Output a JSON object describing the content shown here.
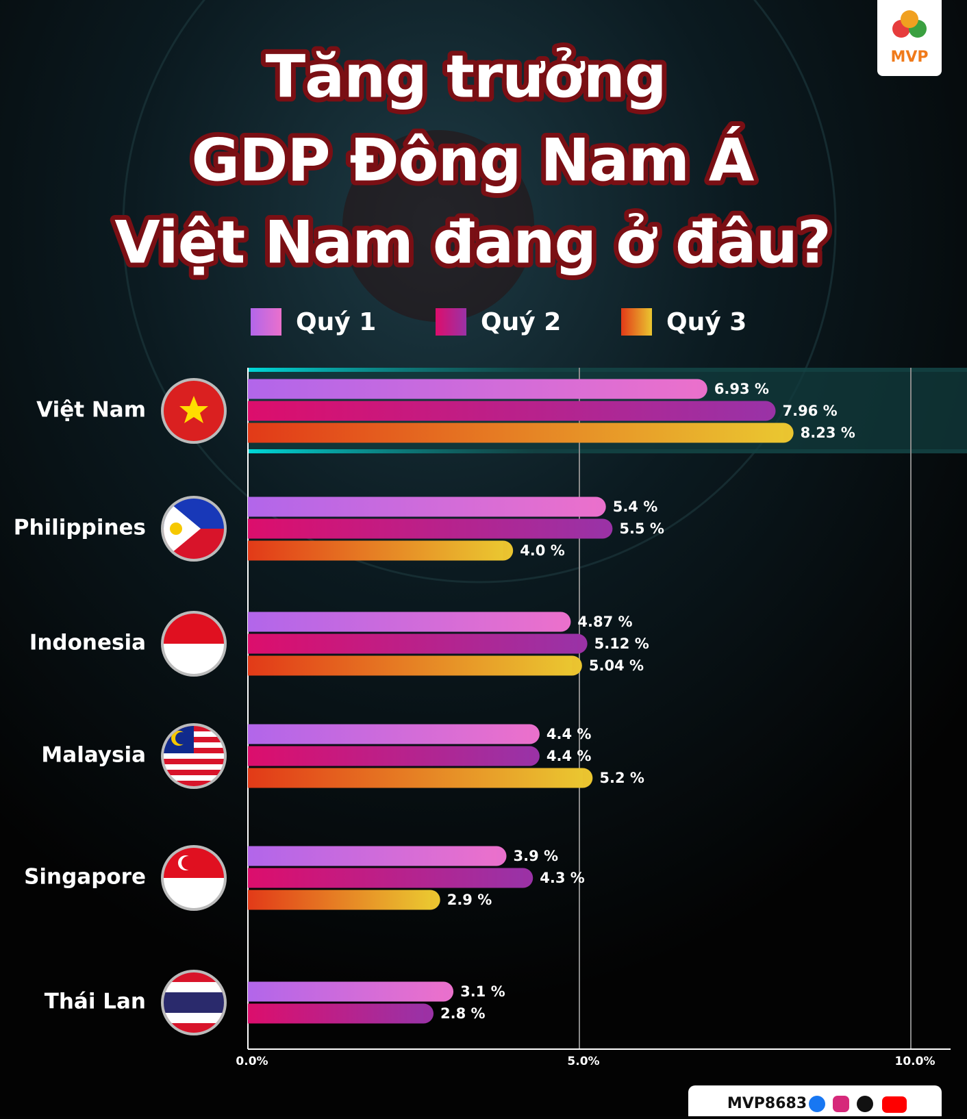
{
  "brand": "MVP",
  "footer": "MVP8683",
  "chart_data": {
    "type": "bar",
    "orientation": "horizontal",
    "title": [
      "Tăng trưởng",
      "GDP Đông Nam Á",
      "Việt Nam đang ở đâu?"
    ],
    "categories": [
      "Việt Nam",
      "Philippines",
      "Indonesia",
      "Malaysia",
      "Singapore",
      "Thái Lan"
    ],
    "series": [
      {
        "name": "Quý 1",
        "color": "#b266ea",
        "color_end": "#ea70cc",
        "values": [
          6.93,
          5.4,
          4.87,
          4.4,
          3.9,
          3.1
        ],
        "value_labels": [
          "6.93 %",
          "5.4 %",
          "4.87 %",
          "4.4 %",
          "3.9 %",
          "3.1 %"
        ]
      },
      {
        "name": "Quý 2",
        "color": "#dc0e6c",
        "color_end": "#9a32a6",
        "values": [
          7.96,
          5.5,
          5.12,
          4.4,
          4.3,
          2.8
        ],
        "value_labels": [
          "7.96 %",
          "5.5 %",
          "5.12 %",
          "4.4 %",
          "4.3 %",
          "2.8 %"
        ]
      },
      {
        "name": "Quý 3",
        "color": "#e23a18",
        "color_end": "#eac630",
        "values": [
          8.23,
          4.0,
          5.04,
          5.2,
          2.9,
          null
        ],
        "value_labels": [
          "8.23 %",
          "4.0 %",
          "5.04 %",
          "5.2 %",
          "2.9 %",
          null
        ]
      }
    ],
    "xlim": [
      0,
      10.6
    ],
    "xticks": [
      {
        "value": 0,
        "label": "0.0%"
      },
      {
        "value": 5,
        "label": "5.0%"
      },
      {
        "value": 10,
        "label": "10.0%"
      }
    ],
    "grid": true,
    "legend": "top"
  }
}
